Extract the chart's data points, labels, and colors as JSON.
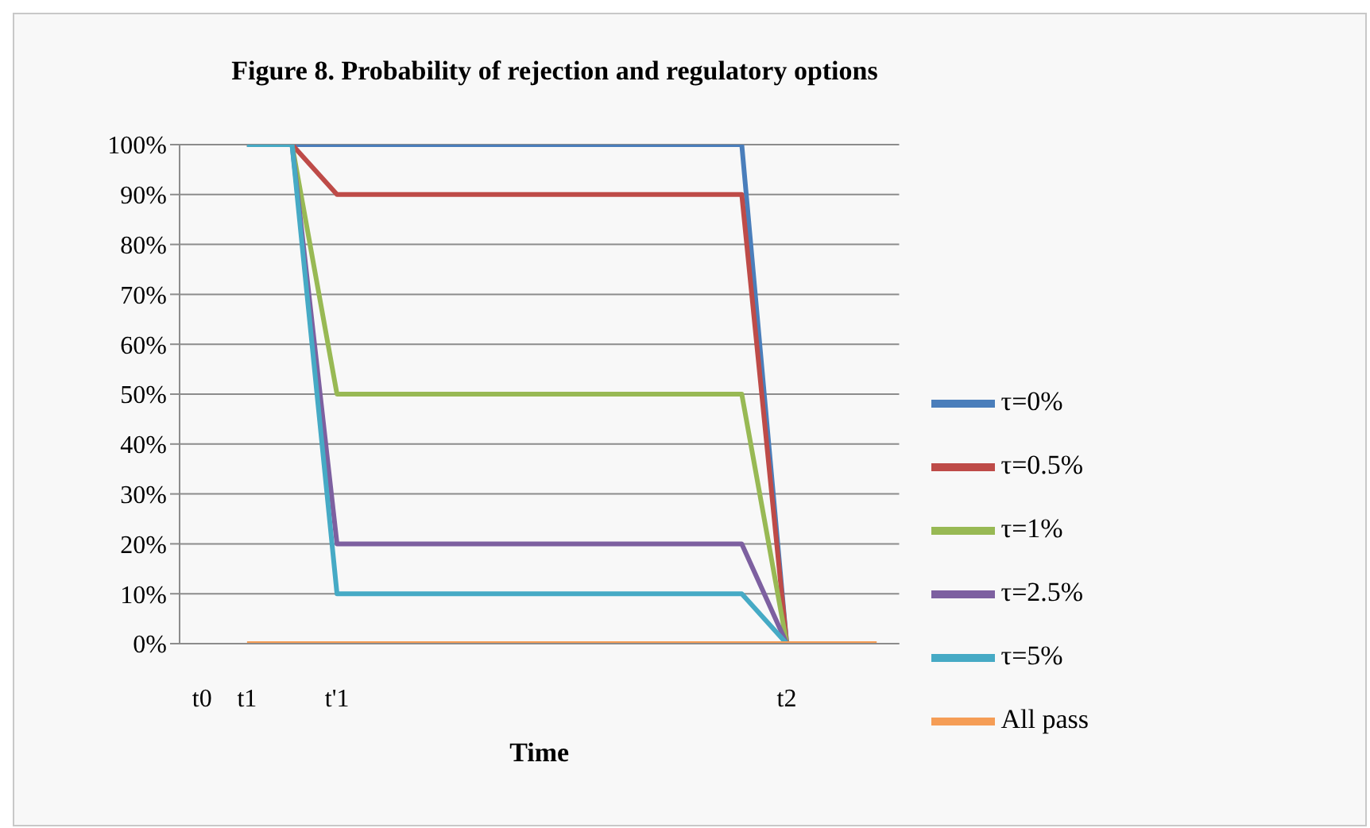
{
  "chart_data": {
    "type": "line",
    "title": "Figure 8. Probability of rejection and regulatory options",
    "xlabel": "Time",
    "categories": [
      "t0",
      "t1",
      null,
      "t'1",
      null,
      null,
      null,
      null,
      null,
      null,
      null,
      null,
      null,
      "t2",
      null,
      null
    ],
    "series": [
      {
        "name": "τ=0%",
        "color": "#4a7ebb",
        "values": [
          null,
          100,
          100,
          100,
          100,
          100,
          100,
          100,
          100,
          100,
          100,
          100,
          100,
          0,
          null,
          null
        ]
      },
      {
        "name": "τ=0.5%",
        "color": "#be4b48",
        "values": [
          null,
          100,
          100,
          90,
          90,
          90,
          90,
          90,
          90,
          90,
          90,
          90,
          90,
          0,
          null,
          null
        ]
      },
      {
        "name": "τ=1%",
        "color": "#98b954",
        "values": [
          null,
          100,
          100,
          50,
          50,
          50,
          50,
          50,
          50,
          50,
          50,
          50,
          50,
          0,
          null,
          null
        ]
      },
      {
        "name": "τ=2.5%",
        "color": "#7d60a0",
        "values": [
          null,
          100,
          100,
          20,
          20,
          20,
          20,
          20,
          20,
          20,
          20,
          20,
          20,
          0,
          null,
          null
        ]
      },
      {
        "name": "τ=5%",
        "color": "#46aac5",
        "values": [
          null,
          100,
          100,
          10,
          10,
          10,
          10,
          10,
          10,
          10,
          10,
          10,
          10,
          0,
          null,
          null
        ]
      },
      {
        "name": "All pass",
        "color": "#f59d56",
        "values": [
          null,
          0,
          0,
          0,
          0,
          0,
          0,
          0,
          0,
          0,
          0,
          0,
          0,
          0,
          0,
          0
        ]
      }
    ],
    "ylim": [
      0,
      100
    ],
    "yticks": [
      {
        "value": 0,
        "label": "0%"
      },
      {
        "value": 10,
        "label": "10%"
      },
      {
        "value": 20,
        "label": "20%"
      },
      {
        "value": 30,
        "label": "30%"
      },
      {
        "value": 40,
        "label": "40%"
      },
      {
        "value": 50,
        "label": "50%"
      },
      {
        "value": 60,
        "label": "60%"
      },
      {
        "value": 70,
        "label": "70%"
      },
      {
        "value": 80,
        "label": "80%"
      },
      {
        "value": 90,
        "label": "90%"
      },
      {
        "value": 100,
        "label": "100%"
      }
    ],
    "grid": "y",
    "legend": "right",
    "marker": "none",
    "line_style": "solid"
  }
}
